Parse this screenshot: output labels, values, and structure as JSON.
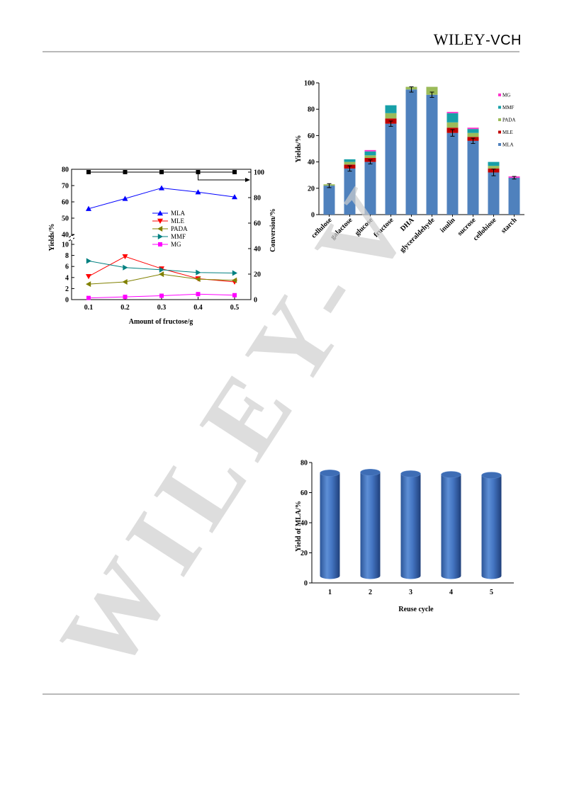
{
  "header": {
    "brand_main": "WILEY",
    "brand_suffix": "-VCH"
  },
  "watermark": {
    "text": "WILEY-V",
    "color": "#cfcfcf"
  },
  "colors": {
    "MLA": "#4f81bd",
    "MLE": "#c00000",
    "PADA": "#9bbb59",
    "MMF": "#17a0a8",
    "MG": "#ff33cc",
    "line_MLA": "#0000ff",
    "line_MLE": "#ff0000",
    "line_PADA": "#808000",
    "line_MMF": "#008080",
    "line_MG": "#ff00ff"
  },
  "chart_data": [
    {
      "id": "fructose-amount",
      "type": "line",
      "xlabel": "Amount of fructose/g",
      "ylabel": "Yields/%",
      "y2label": "Conversion/%",
      "x": [
        0.1,
        0.2,
        0.3,
        0.4,
        0.5
      ],
      "x_ticks": [
        "0.1",
        "0.2",
        "0.3",
        "0.4",
        "0.5"
      ],
      "ylim_upper": [
        40,
        80
      ],
      "y_ticks_upper": [
        "40",
        "50",
        "60",
        "70",
        "80"
      ],
      "ylim_lower": [
        0,
        10
      ],
      "y_ticks_lower": [
        "0",
        "2",
        "4",
        "6",
        "8",
        "10"
      ],
      "y2lim": [
        0,
        100
      ],
      "y2_ticks": [
        "0",
        "20",
        "40",
        "60",
        "80",
        "100"
      ],
      "legend_position": "center",
      "series": [
        {
          "name": "MLA",
          "values": [
            55.8,
            62.0,
            68.5,
            66.0,
            63.0
          ],
          "marker": "triangle-up"
        },
        {
          "name": "MLE",
          "values": [
            4.2,
            7.8,
            5.6,
            3.8,
            3.2
          ],
          "marker": "triangle-down"
        },
        {
          "name": "PADA",
          "values": [
            2.8,
            3.2,
            4.6,
            3.7,
            3.5
          ],
          "marker": "triangle-left"
        },
        {
          "name": "MMF",
          "values": [
            7.0,
            5.8,
            5.4,
            4.9,
            4.8
          ],
          "marker": "triangle-right"
        },
        {
          "name": "MG",
          "values": [
            0.3,
            0.5,
            0.7,
            1.0,
            0.8
          ],
          "marker": "square"
        }
      ],
      "conversion": [
        100,
        100,
        100,
        100,
        100
      ]
    },
    {
      "id": "substrates",
      "type": "bar",
      "stacked": true,
      "ylabel": "Yields/%",
      "ylim": [
        0,
        100
      ],
      "y_ticks": [
        "0",
        "20",
        "40",
        "60",
        "80",
        "100"
      ],
      "categories": [
        "cellulose",
        "galactose",
        "glucose",
        "fructose",
        "DHA",
        "glyceraldehyde",
        "inulin",
        "sucrose",
        "cellobiose",
        "starch"
      ],
      "legend_position": "right",
      "legend_order": [
        "MG",
        "MMF",
        "PADA",
        "MLE",
        "MLA"
      ],
      "series": [
        {
          "name": "MLA",
          "values": [
            22,
            35,
            40,
            69,
            95,
            91,
            62,
            56,
            32,
            28
          ]
        },
        {
          "name": "MLE",
          "values": [
            0,
            3,
            3,
            4,
            0,
            0,
            4,
            3,
            3,
            0
          ]
        },
        {
          "name": "PADA",
          "values": [
            1,
            2,
            2,
            4,
            2,
            6,
            4,
            3,
            2,
            0
          ]
        },
        {
          "name": "MMF",
          "values": [
            0,
            2,
            3,
            6,
            0,
            0,
            7,
            3,
            3,
            0
          ]
        },
        {
          "name": "MG",
          "values": [
            0,
            0,
            1,
            0,
            0,
            0,
            1,
            1,
            0,
            1
          ]
        }
      ],
      "errors": [
        1.5,
        2,
        1.5,
        2,
        2,
        2,
        2.5,
        2,
        2.5,
        1
      ]
    },
    {
      "id": "reuse",
      "type": "bar",
      "ylabel": "Yield of MLA/%",
      "xlabel": "Reuse cycle",
      "ylim": [
        0,
        80
      ],
      "y_ticks": [
        "0",
        "20",
        "40",
        "60",
        "80"
      ],
      "categories": [
        "1",
        "2",
        "3",
        "4",
        "5"
      ],
      "values": [
        73,
        73.5,
        72.5,
        72,
        71.5
      ]
    }
  ]
}
